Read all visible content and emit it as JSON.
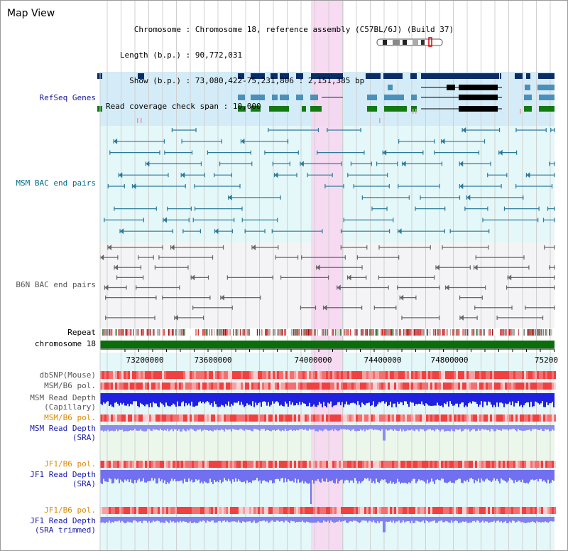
{
  "page": {
    "title": "Map View"
  },
  "info": {
    "chromosome_label": "Chromosome",
    "chromosome_value": "Chromosome 18, reference assembly (C57BL/6J) (Build 37)",
    "length_label": "Length (b.p.)",
    "length_value": "90,772,031",
    "show_label": "Show (b.p.)",
    "show_value": "73,080,422-75,231,806 : 2,151,385 bp",
    "coverage_label": "Read coverage check span",
    "coverage_value": "10,000"
  },
  "tracks": {
    "refseq": "RefSeq Genes",
    "msm_bac": "MSM BAC end pairs",
    "b6n_bac": "B6N BAC end pairs",
    "repeat": "Repeat",
    "chromosome": "chromosome 18",
    "dbsnp": "dbSNP(Mouse)",
    "msm_b6_pol_1": "MSM/B6 pol.",
    "msm_depth_cap_1": "MSM Read Depth",
    "msm_depth_cap_2": "(Capillary)",
    "msm_b6_pol_2": "MSM/B6 pol.",
    "msm_depth_sra_1": "MSM Read Depth",
    "msm_depth_sra_2": "(SRA)",
    "jf1_b6_pol_1": "JF1/B6 pol.",
    "jf1_depth_sra_1": "JF1 Read Depth",
    "jf1_depth_sra_2": "(SRA)",
    "jf1_b6_pol_2": "JF1/B6 pol.",
    "jf1_depth_trim_1": "JF1 Read Depth",
    "jf1_depth_trim_2": "(SRA trimmed)"
  },
  "axis": {
    "ticks": [
      "73200000",
      "73600000",
      "74000000",
      "74400000",
      "74800000",
      "75200"
    ]
  },
  "colors": {
    "refseq_label": "#1a1a99",
    "msm_label": "#006b8a",
    "b6n_label": "#555555",
    "orange_label": "#e08a00",
    "blue_label": "#1a1aaa",
    "highlight": "#f7d6f1",
    "gene_dark": "#0b2d66",
    "gene_mid": "#4a90b8",
    "gene_green": "#137a13",
    "bac_msm": "#2a7a9a",
    "bac_b6n": "#666666",
    "chrom_bar": "#0a6e0a"
  }
}
